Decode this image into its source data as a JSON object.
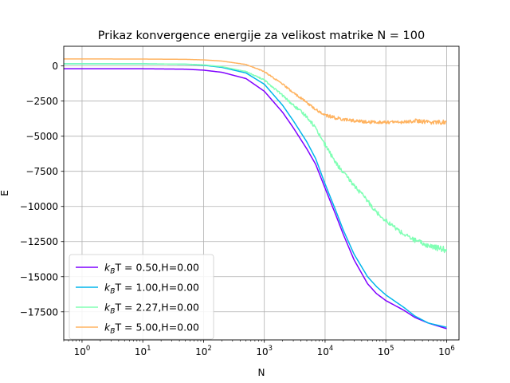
{
  "chart_data": {
    "type": "line",
    "title": "Prikaz konvergence energije za velikost matrike N = 100",
    "xlabel": "N",
    "ylabel": "E",
    "xscale": "log",
    "xlim": [
      0.5,
      1600000
    ],
    "ylim": [
      -19500,
      1400
    ],
    "grid": true,
    "legend_position": "lower-left",
    "x_ticks": [
      {
        "value": 1,
        "label": "10^0"
      },
      {
        "value": 10,
        "label": "10^1"
      },
      {
        "value": 100,
        "label": "10^2"
      },
      {
        "value": 1000,
        "label": "10^3"
      },
      {
        "value": 10000,
        "label": "10^4"
      },
      {
        "value": 100000,
        "label": "10^5"
      },
      {
        "value": 1000000,
        "label": "10^6"
      }
    ],
    "y_ticks": [
      0,
      -2500,
      -5000,
      -7500,
      -10000,
      -12500,
      -15000,
      -17500
    ],
    "y_tick_labels": [
      "0",
      "−2500",
      "−5000",
      "−7500",
      "−10000",
      "−12500",
      "−15000",
      "−17500"
    ],
    "series": [
      {
        "name": "k_BT = 0.50,H=0.00",
        "label_k": "k",
        "label_sub": "B",
        "label_rest": "T = 0.50,H=0.00",
        "color": "#7f00ff",
        "noise": 0,
        "x": [
          0.5,
          1,
          10,
          50,
          100,
          200,
          500,
          1000,
          2000,
          3000,
          5000,
          7000,
          10000,
          15000,
          20000,
          30000,
          50000,
          70000,
          100000,
          200000,
          300000,
          500000,
          1000000
        ],
        "y": [
          -200,
          -200,
          -200,
          -230,
          -300,
          -450,
          -900,
          -1800,
          -3300,
          -4400,
          -5900,
          -7000,
          -8700,
          -10600,
          -12000,
          -13800,
          -15500,
          -16200,
          -16700,
          -17400,
          -17900,
          -18300,
          -18700
        ]
      },
      {
        "name": "k_BT = 1.00,H=0.00",
        "label_k": "k",
        "label_sub": "B",
        "label_rest": "T = 1.00,H=0.00",
        "color": "#00b5eb",
        "noise": 0,
        "x": [
          0.5,
          1,
          10,
          50,
          100,
          200,
          500,
          1000,
          2000,
          3000,
          5000,
          7000,
          10000,
          15000,
          20000,
          30000,
          50000,
          70000,
          100000,
          200000,
          300000,
          500000,
          1000000
        ],
        "y": [
          150,
          150,
          150,
          120,
          50,
          -100,
          -500,
          -1300,
          -2800,
          -3900,
          -5400,
          -6600,
          -8400,
          -10300,
          -11700,
          -13400,
          -15000,
          -15700,
          -16300,
          -17200,
          -17800,
          -18300,
          -18600
        ]
      },
      {
        "name": "k_BT = 2.27,H=0.00",
        "label_k": "k",
        "label_sub": "B",
        "label_rest": "T = 2.27,H=0.00",
        "color": "#80ffb4",
        "noise": 150,
        "x": [
          0.5,
          1,
          10,
          50,
          100,
          200,
          500,
          1000,
          2000,
          3000,
          5000,
          7000,
          10000,
          15000,
          20000,
          30000,
          50000,
          70000,
          100000,
          200000,
          300000,
          500000,
          1000000
        ],
        "y": [
          150,
          150,
          150,
          130,
          80,
          -50,
          -400,
          -1000,
          -2100,
          -2800,
          -3600,
          -4400,
          -5600,
          -6900,
          -7600,
          -8500,
          -9600,
          -10400,
          -11000,
          -12000,
          -12400,
          -12800,
          -13100
        ]
      },
      {
        "name": "k_BT = 5.00,H=0.00",
        "label_k": "k",
        "label_sub": "B",
        "label_rest": "T = 5.00,H=0.00",
        "color": "#ffb360",
        "noise": 110,
        "x": [
          0.5,
          1,
          10,
          50,
          100,
          200,
          500,
          1000,
          2000,
          3000,
          5000,
          7000,
          10000,
          15000,
          20000,
          30000,
          50000,
          70000,
          100000,
          200000,
          300000,
          500000,
          1000000
        ],
        "y": [
          500,
          500,
          490,
          470,
          430,
          350,
          100,
          -400,
          -1300,
          -1900,
          -2600,
          -3100,
          -3500,
          -3700,
          -3800,
          -3900,
          -4000,
          -4000,
          -4000,
          -4000,
          -3900,
          -4000,
          -4000
        ]
      }
    ]
  }
}
